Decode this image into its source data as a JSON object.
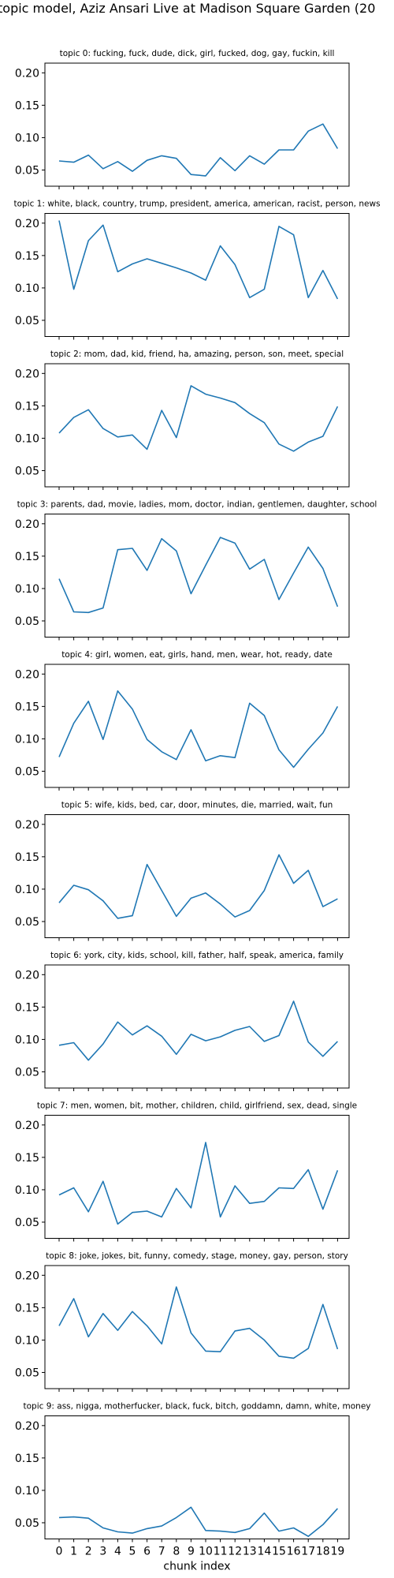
{
  "figure": {
    "title": "topic model, Aziz Ansari Live at Madison Square Garden (20"
  },
  "chart_data": [
    {
      "type": "line",
      "title": "topic 0: fucking, fuck, dude, dick, girl, fucked, dog, gay, fuckin, kill",
      "x": [
        0,
        1,
        2,
        3,
        4,
        5,
        6,
        7,
        8,
        9,
        10,
        11,
        12,
        13,
        14,
        15,
        16,
        17,
        18,
        19
      ],
      "values": [
        0.064,
        0.062,
        0.073,
        0.052,
        0.063,
        0.048,
        0.065,
        0.072,
        0.068,
        0.043,
        0.041,
        0.069,
        0.049,
        0.072,
        0.059,
        0.081,
        0.081,
        0.11,
        0.121,
        0.083
      ],
      "xlabel": "",
      "ylabel": "",
      "ylim": [
        0.025,
        0.215
      ],
      "yticks": [
        "0.05",
        "0.10",
        "0.15",
        "0.20"
      ]
    },
    {
      "type": "line",
      "title": "topic 1: white, black, country, trump, president, america, american, racist, person, news",
      "x": [
        0,
        1,
        2,
        3,
        4,
        5,
        6,
        7,
        8,
        9,
        10,
        11,
        12,
        13,
        14,
        15,
        16,
        17,
        18,
        19
      ],
      "values": [
        0.204,
        0.098,
        0.173,
        0.197,
        0.125,
        0.137,
        0.145,
        0.138,
        0.131,
        0.123,
        0.112,
        0.165,
        0.136,
        0.085,
        0.098,
        0.195,
        0.182,
        0.085,
        0.127,
        0.083
      ],
      "xlabel": "",
      "ylabel": "",
      "ylim": [
        0.025,
        0.215
      ],
      "yticks": [
        "0.05",
        "0.10",
        "0.15",
        "0.20"
      ]
    },
    {
      "type": "line",
      "title": "topic 2: mom, dad, kid, friend, ha, amazing, person, son, meet, special",
      "x": [
        0,
        1,
        2,
        3,
        4,
        5,
        6,
        7,
        8,
        9,
        10,
        11,
        12,
        13,
        14,
        15,
        16,
        17,
        18,
        19
      ],
      "values": [
        0.108,
        0.132,
        0.144,
        0.115,
        0.102,
        0.105,
        0.083,
        0.143,
        0.101,
        0.181,
        0.168,
        0.162,
        0.155,
        0.138,
        0.124,
        0.091,
        0.08,
        0.094,
        0.103,
        0.149
      ],
      "xlabel": "",
      "ylabel": "",
      "ylim": [
        0.025,
        0.215
      ],
      "yticks": [
        "0.05",
        "0.10",
        "0.15",
        "0.20"
      ]
    },
    {
      "type": "line",
      "title": "topic 3: parents, dad, movie, ladies, mom, doctor, indian, gentlemen, daughter, school",
      "x": [
        0,
        1,
        2,
        3,
        4,
        5,
        6,
        7,
        8,
        9,
        10,
        11,
        12,
        13,
        14,
        15,
        16,
        17,
        18,
        19
      ],
      "values": [
        0.115,
        0.064,
        0.063,
        0.07,
        0.16,
        0.162,
        0.128,
        0.177,
        0.158,
        0.092,
        0.136,
        0.179,
        0.17,
        0.13,
        0.145,
        0.083,
        0.124,
        0.164,
        0.131,
        0.072
      ],
      "xlabel": "",
      "ylabel": "",
      "ylim": [
        0.025,
        0.215
      ],
      "yticks": [
        "0.05",
        "0.10",
        "0.15",
        "0.20"
      ]
    },
    {
      "type": "line",
      "title": "topic 4: girl, women, eat, girls, hand, men, wear, hot, ready, date",
      "x": [
        0,
        1,
        2,
        3,
        4,
        5,
        6,
        7,
        8,
        9,
        10,
        11,
        12,
        13,
        14,
        15,
        16,
        17,
        18,
        19
      ],
      "values": [
        0.072,
        0.124,
        0.158,
        0.099,
        0.174,
        0.146,
        0.099,
        0.08,
        0.068,
        0.114,
        0.066,
        0.074,
        0.071,
        0.155,
        0.136,
        0.083,
        0.056,
        0.084,
        0.109,
        0.15
      ],
      "xlabel": "",
      "ylabel": "",
      "ylim": [
        0.025,
        0.215
      ],
      "yticks": [
        "0.05",
        "0.10",
        "0.15",
        "0.20"
      ]
    },
    {
      "type": "line",
      "title": "topic 5: wife, kids, bed, car, door, minutes, die, married, wait, fun",
      "x": [
        0,
        1,
        2,
        3,
        4,
        5,
        6,
        7,
        8,
        9,
        10,
        11,
        12,
        13,
        14,
        15,
        16,
        17,
        18,
        19
      ],
      "values": [
        0.079,
        0.106,
        0.099,
        0.082,
        0.055,
        0.059,
        0.138,
        0.098,
        0.058,
        0.086,
        0.094,
        0.077,
        0.057,
        0.067,
        0.098,
        0.153,
        0.109,
        0.129,
        0.073,
        0.085
      ],
      "xlabel": "",
      "ylabel": "",
      "ylim": [
        0.025,
        0.215
      ],
      "yticks": [
        "0.05",
        "0.10",
        "0.15",
        "0.20"
      ]
    },
    {
      "type": "line",
      "title": "topic 6: york, city, kids, school, kill, father, half, speak, america, family",
      "x": [
        0,
        1,
        2,
        3,
        4,
        5,
        6,
        7,
        8,
        9,
        10,
        11,
        12,
        13,
        14,
        15,
        16,
        17,
        18,
        19
      ],
      "values": [
        0.091,
        0.095,
        0.068,
        0.093,
        0.127,
        0.107,
        0.121,
        0.105,
        0.077,
        0.108,
        0.098,
        0.104,
        0.114,
        0.12,
        0.097,
        0.106,
        0.159,
        0.096,
        0.074,
        0.097
      ],
      "xlabel": "",
      "ylabel": "",
      "ylim": [
        0.025,
        0.215
      ],
      "yticks": [
        "0.05",
        "0.10",
        "0.15",
        "0.20"
      ]
    },
    {
      "type": "line",
      "title": "topic 7: men, women, bit, mother, children, child, girlfriend, sex, dead, single",
      "x": [
        0,
        1,
        2,
        3,
        4,
        5,
        6,
        7,
        8,
        9,
        10,
        11,
        12,
        13,
        14,
        15,
        16,
        17,
        18,
        19
      ],
      "values": [
        0.092,
        0.103,
        0.066,
        0.113,
        0.047,
        0.065,
        0.067,
        0.058,
        0.102,
        0.072,
        0.173,
        0.058,
        0.106,
        0.079,
        0.082,
        0.103,
        0.102,
        0.131,
        0.07,
        0.13
      ],
      "xlabel": "",
      "ylabel": "",
      "ylim": [
        0.025,
        0.215
      ],
      "yticks": [
        "0.05",
        "0.10",
        "0.15",
        "0.20"
      ]
    },
    {
      "type": "line",
      "title": "topic 8: joke, jokes, bit, funny, comedy, stage, money, gay, person, story",
      "x": [
        0,
        1,
        2,
        3,
        4,
        5,
        6,
        7,
        8,
        9,
        10,
        11,
        12,
        13,
        14,
        15,
        16,
        17,
        18,
        19
      ],
      "values": [
        0.122,
        0.164,
        0.105,
        0.141,
        0.115,
        0.144,
        0.122,
        0.094,
        0.182,
        0.111,
        0.083,
        0.082,
        0.114,
        0.118,
        0.1,
        0.075,
        0.072,
        0.087,
        0.155,
        0.086
      ],
      "xlabel": "",
      "ylabel": "",
      "ylim": [
        0.025,
        0.215
      ],
      "yticks": [
        "0.05",
        "0.10",
        "0.15",
        "0.20"
      ]
    },
    {
      "type": "line",
      "title": "topic 9: ass, nigga, motherfucker, black, fuck, bitch, goddamn, damn, white, money",
      "x": [
        0,
        1,
        2,
        3,
        4,
        5,
        6,
        7,
        8,
        9,
        10,
        11,
        12,
        13,
        14,
        15,
        16,
        17,
        18,
        19
      ],
      "values": [
        0.058,
        0.059,
        0.057,
        0.042,
        0.036,
        0.034,
        0.041,
        0.045,
        0.058,
        0.074,
        0.038,
        0.037,
        0.035,
        0.041,
        0.065,
        0.037,
        0.042,
        0.029,
        0.047,
        0.072
      ],
      "xlabel": "chunk index",
      "ylabel": "",
      "ylim": [
        0.025,
        0.215
      ],
      "yticks": [
        "0.05",
        "0.10",
        "0.15",
        "0.20"
      ],
      "xticks": [
        "0",
        "1",
        "2",
        "3",
        "4",
        "5",
        "6",
        "7",
        "8",
        "9",
        "10",
        "11",
        "12",
        "13",
        "14",
        "15",
        "16",
        "17",
        "18",
        "19"
      ]
    }
  ],
  "style": {
    "line_color": "#1f77b4",
    "grid": false,
    "legend": "none"
  }
}
